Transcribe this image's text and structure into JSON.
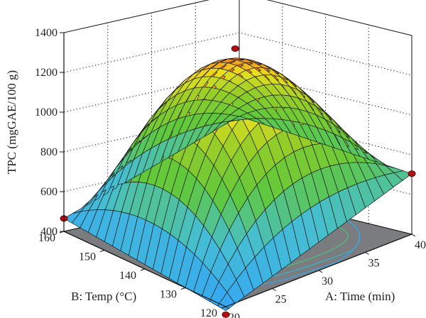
{
  "chart_data": {
    "type": "surface3d",
    "title": "",
    "zlabel": "TPC (mgGAE/100 g)",
    "xlabel": "A: Time (min)",
    "ylabel": "B: Temp (°C)",
    "x_range": [
      20,
      40
    ],
    "y_range": [
      120,
      160
    ],
    "z_range": [
      400,
      1400
    ],
    "x_ticks": [
      "20",
      "25",
      "30",
      "35",
      "40"
    ],
    "y_ticks": [
      "120",
      "130",
      "140",
      "150",
      "160"
    ],
    "z_ticks": [
      "400",
      "600",
      "800",
      "1000",
      "1200",
      "1400"
    ],
    "surface_model": {
      "center": {
        "time": 30,
        "temp": 140,
        "tpc": 1305
      },
      "corners": [
        {
          "time": 20,
          "temp": 120,
          "tpc": 380
        },
        {
          "time": 40,
          "temp": 120,
          "tpc": 705
        },
        {
          "time": 20,
          "temp": 160,
          "tpc": 465
        },
        {
          "time": 40,
          "temp": 160,
          "tpc": 780
        }
      ]
    },
    "design_points": [
      {
        "time": 30,
        "temp": 140,
        "tpc": 1368
      },
      {
        "time": 20,
        "temp": 120,
        "tpc": 360
      },
      {
        "time": 40,
        "temp": 120,
        "tpc": 705
      },
      {
        "time": 20,
        "temp": 160,
        "tpc": 465
      }
    ],
    "grid": true,
    "floor_contours": true,
    "colors": {
      "floor": "#7a7c80",
      "surface_low": "#36a9f2",
      "surface_mid": "#66cc22",
      "surface_high": "#e8401e",
      "point": "#b30f12"
    }
  }
}
